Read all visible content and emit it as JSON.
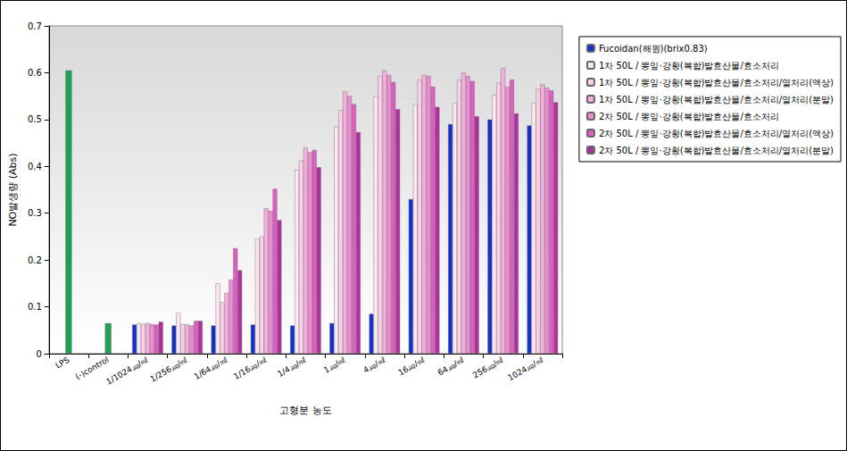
{
  "chart_data": {
    "type": "bar",
    "x_label": "고형분 농도",
    "y_label": "NO발생량 (Abs)",
    "categories": [
      "LPS",
      "(-)control",
      "1/1024㎍/㎖",
      "1/256㎍/㎖",
      "1/64㎍/㎖",
      "1/16㎍/㎖",
      "1/4㎍/㎖",
      "1㎍/㎖",
      "4㎍/㎖",
      "16㎍/㎖",
      "64㎍/㎖",
      "256㎍/㎖",
      "1024㎍/㎖"
    ],
    "series": [
      {
        "color": "#1fa055",
        "values": [
          0.605,
          0.065,
          null,
          null,
          null,
          null,
          null,
          null,
          null,
          null,
          null,
          null,
          null
        ]
      },
      {
        "name": "Fucoidan(해원)(brix0.83)",
        "color": "#1030d0",
        "values": [
          null,
          null,
          0.062,
          0.06,
          0.06,
          0.062,
          0.06,
          0.065,
          0.085,
          0.33,
          0.49,
          0.5,
          0.487
        ]
      },
      {
        "name": "1차 50L / 뽕잎·강황(복합)발효산물/효소처리",
        "color": "#fde6f2",
        "values": [
          null,
          null,
          0.065,
          0.087,
          0.15,
          0.245,
          0.393,
          0.485,
          0.55,
          0.533,
          0.535,
          0.552,
          0.535
        ]
      },
      {
        "name": "1차 50L / 뽕잎·강황(복합)발효산물/효소처리/열처리(액상)",
        "color": "#fbd0e8",
        "values": [
          null,
          null,
          0.063,
          0.063,
          0.11,
          0.25,
          0.413,
          0.52,
          0.593,
          0.585,
          0.585,
          0.578,
          0.565
        ]
      },
      {
        "name": "1차 50L / 뽕잎·강황(복합)발효산물/효소처리/열처리(분말)",
        "color": "#f5aede",
        "values": [
          null,
          null,
          0.065,
          0.062,
          0.13,
          0.31,
          0.44,
          0.56,
          0.605,
          0.595,
          0.6,
          0.61,
          0.575
        ]
      },
      {
        "name": "2차 50L / 뽕잎·강황(복합)발효산물/효소처리",
        "color": "#ee8cd2",
        "values": [
          null,
          null,
          0.063,
          0.06,
          0.158,
          0.305,
          0.43,
          0.55,
          0.595,
          0.593,
          0.593,
          0.57,
          0.568
        ]
      },
      {
        "name": "2차 50L / 뽕잎·강황(복합)발효산물/효소처리/열처리(액상)",
        "color": "#dd5ec2",
        "values": [
          null,
          null,
          0.062,
          0.07,
          0.225,
          0.352,
          0.435,
          0.533,
          0.58,
          0.57,
          0.582,
          0.585,
          0.562
        ]
      },
      {
        "name": "2차 50L / 뽕잎·강황(복합)발효산물/효소처리/열처리(분말)",
        "color": "#b0309e",
        "values": [
          null,
          null,
          0.068,
          0.07,
          0.178,
          0.285,
          0.398,
          0.473,
          0.522,
          0.527,
          0.507,
          0.513,
          0.537
        ]
      }
    ],
    "ylim": [
      0,
      0.7
    ],
    "yticks": [
      0,
      0.1,
      0.2,
      0.3,
      0.4,
      0.5,
      0.6,
      0.7
    ],
    "grid": false,
    "legend": "right"
  }
}
